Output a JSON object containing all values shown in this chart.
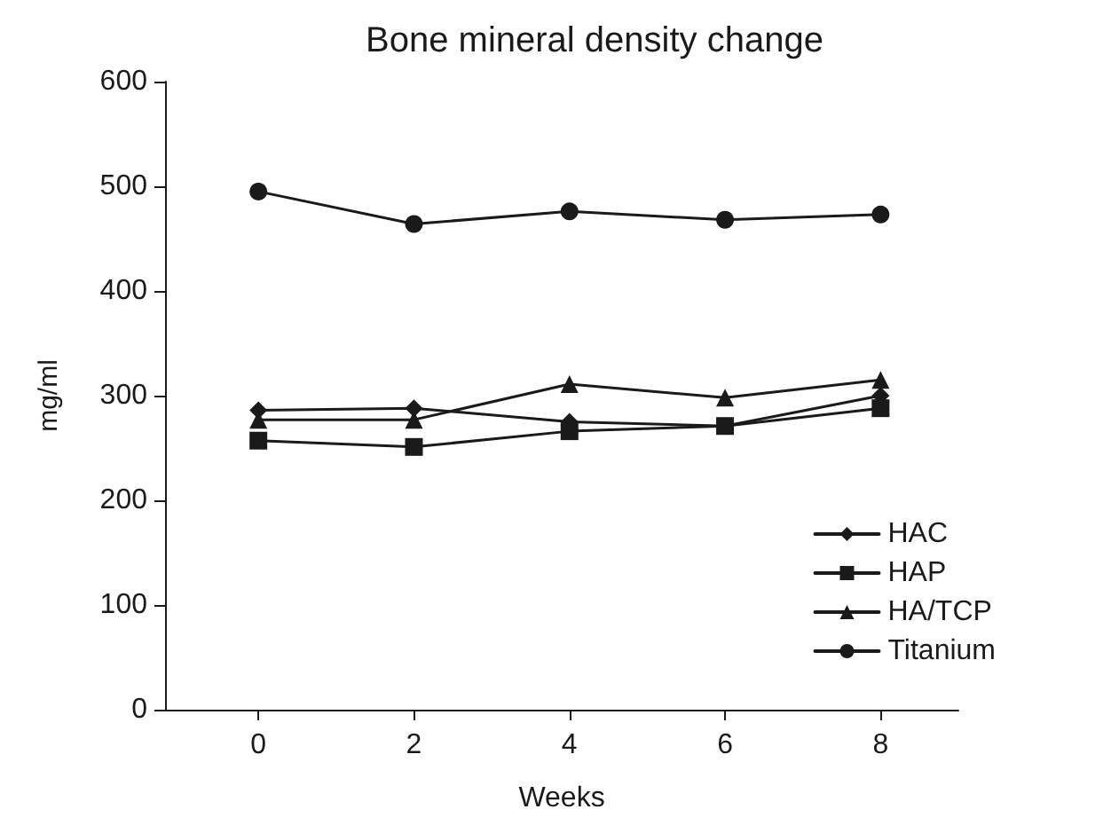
{
  "chart_data": {
    "type": "line",
    "title": "Bone mineral density change",
    "xlabel": "Weeks",
    "ylabel": "mg/ml",
    "x": [
      0,
      2,
      4,
      6,
      8
    ],
    "xlim": [
      -1.2,
      9
    ],
    "xticks": [
      0,
      2,
      4,
      6,
      8
    ],
    "ylim": [
      0,
      600
    ],
    "yticks": [
      0,
      100,
      200,
      300,
      400,
      500,
      600
    ],
    "series": [
      {
        "name": "HAC",
        "color": "#1a1a1a",
        "marker": "diamond",
        "values": [
          286,
          288,
          275,
          271,
          300
        ]
      },
      {
        "name": "HAP",
        "color": "#1a1a1a",
        "marker": "square",
        "values": [
          257,
          251,
          266,
          271,
          288
        ]
      },
      {
        "name": "HA/TCP",
        "color": "#1a1a1a",
        "marker": "triangle",
        "values": [
          277,
          277,
          311,
          298,
          315
        ]
      },
      {
        "name": "Titanium",
        "color": "#1a1a1a",
        "marker": "circle",
        "values": [
          495,
          464,
          476,
          468,
          473
        ]
      }
    ],
    "legend": "bottom right",
    "grid": false,
    "line_style": "solid"
  }
}
